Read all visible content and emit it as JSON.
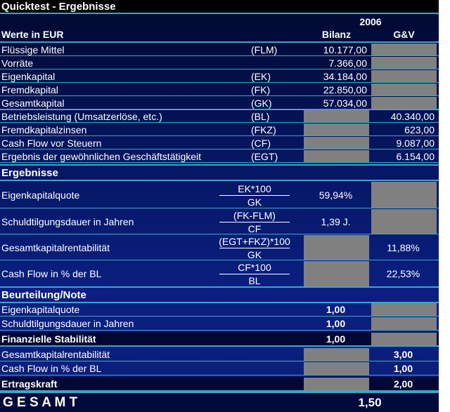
{
  "header": {
    "title": "Quicktest - Ergebnisse",
    "year": "2006",
    "label": "Werte in EUR",
    "col_bilanz": "Bilanz",
    "col_guv": "G&V"
  },
  "inputs": [
    {
      "label": "Flüssige Mittel",
      "abbr": "(FLM)",
      "bilanz": "10.177,00"
    },
    {
      "label": "Vorräte",
      "bilanz": "7.366,00"
    },
    {
      "label": "Eigenkapital",
      "abbr": "(EK)",
      "bilanz": "34.184,00"
    },
    {
      "label": "Fremdkapital",
      "abbr": "(FK)",
      "bilanz": "22.850,00"
    },
    {
      "label": "Gesamtkapital",
      "abbr": "(GK)",
      "bilanz": "57.034,00"
    },
    {
      "label": "Betriebsleistung (Umsatzerlöse, etc.)",
      "abbr": "(BL)",
      "guv": "40.340,00"
    },
    {
      "label": "Fremdkapitalzinsen",
      "abbr": "(FKZ)",
      "guv": "623,00"
    },
    {
      "label": "Cash Flow vor Steuern",
      "abbr": "(CF)",
      "guv": "9.087,00"
    },
    {
      "label": "Ergebnis der gewöhnlichen Geschäftstätigkeit",
      "abbr": "(EGT)",
      "guv": "6.154,00"
    }
  ],
  "results": {
    "title": "Ergebnisse",
    "rows": [
      {
        "label": "Eigenkapitalquote",
        "numerator": "EK*100",
        "denominator": "GK",
        "bilanz": "59,94%"
      },
      {
        "label": "Schuldtilgungsdauer in Jahren",
        "numerator": "(FK-FLM)",
        "denominator": "CF",
        "bilanz": "1,39 J."
      },
      {
        "label": "Gesamtkapitalrentabilität",
        "numerator": "(EGT+FKZ)*100",
        "denominator": "GK",
        "guv": "11,88%"
      },
      {
        "label": "Cash Flow in % der BL",
        "numerator": "CF*100",
        "denominator": "BL",
        "guv": "22,53%"
      }
    ]
  },
  "rating": {
    "title": "Beurteilung/Note",
    "rows": [
      {
        "label": "Eigenkapitalquote",
        "bilanz": "1,00"
      },
      {
        "label": "Schuldtilgungsdauer in Jahren",
        "bilanz": "1,00"
      },
      {
        "label": "Finanzielle Stabilität",
        "bilanz": "1,00",
        "bold": true
      },
      {
        "label": "Gesamtkapitalrentabilität",
        "guv": "3,00"
      },
      {
        "label": "Cash Flow in % der BL",
        "guv": "1,00"
      },
      {
        "label": "Ertragskraft",
        "guv": "2,00",
        "bold": true
      }
    ]
  },
  "total": {
    "label": "G E S A M T",
    "value": "1,50"
  }
}
